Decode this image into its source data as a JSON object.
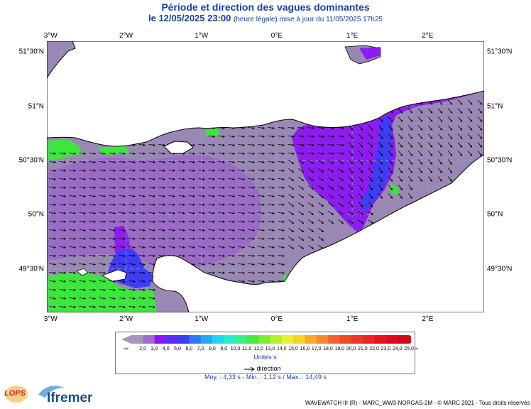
{
  "title": "Période et direction des vagues dominantes",
  "subtitle_date": "le 12/05/2025 23:00",
  "subtitle_suffix": "(heure légale) mise à jour du 11/05/2025 17h25",
  "map": {
    "lon_ticks": [
      {
        "label": "3°W",
        "lon": -3
      },
      {
        "label": "2°W",
        "lon": -2
      },
      {
        "label": "1°W",
        "lon": -1
      },
      {
        "label": "0°E",
        "lon": 0
      },
      {
        "label": "1°E",
        "lon": 1
      },
      {
        "label": "2°E",
        "lon": 2
      }
    ],
    "lat_ticks": [
      {
        "label": "51°30'N",
        "lat": 51.5
      },
      {
        "label": "51°N",
        "lat": 51.0
      },
      {
        "label": "50°30'N",
        "lat": 50.5
      },
      {
        "label": "50°N",
        "lat": 50.0
      },
      {
        "label": "49°30'N",
        "lat": 49.5
      }
    ],
    "extent": {
      "lon_min": -3.05,
      "lon_max": 2.75,
      "lat_min": 49.1,
      "lat_max": 51.6
    },
    "colors": {
      "land": "#ffffff",
      "water_low": "#9a88b4",
      "water_mid": "#9a6cc6",
      "purple": "#8c1cf0",
      "blue": "#3d3df5",
      "green": "#3ce63c",
      "grid": "#9aa0d8",
      "coast": "#000000"
    }
  },
  "legend": {
    "labels": [
      "2,0",
      "3,0",
      "4,0",
      "5,0",
      "6,0",
      "7,0",
      "8,0",
      "9,0",
      "10,0",
      "11,0",
      "12,0",
      "13,0",
      "14,0",
      "15,0",
      "16,0",
      "17,0",
      "18,0",
      "19,0",
      "20,0",
      "21,0",
      "22,0",
      "23,0",
      "24,0",
      "25,0"
    ],
    "colors": [
      "#a896c0",
      "#9d6ccc",
      "#8a18f2",
      "#5a2cf4",
      "#3b3ef5",
      "#2e78f5",
      "#22aaf2",
      "#1ed6f0",
      "#2aeccc",
      "#3aee8a",
      "#46ec3e",
      "#7cee2c",
      "#b6f02a",
      "#e6f22a",
      "#f6d22a",
      "#f6aa28",
      "#f68a28",
      "#f46428",
      "#f24a26",
      "#ee3824",
      "#ea2622",
      "#e41420",
      "#dc0a1c",
      "#d20818"
    ],
    "left_symbol": "-∞",
    "right_symbol": "∞",
    "unit": "Unités:s",
    "direction_label": "direction"
  },
  "stats": "Moy. : 4,33 s  -  Min. : 1,12 s / Max. : 14,49 s",
  "logos": {
    "lops": "LOPS",
    "ifremer": "Ifremer"
  },
  "credit": "WAVEWATCH III (R) - MARC_WW3-NORGAS-2M - © MARC 2021 - Tous droits réservés"
}
